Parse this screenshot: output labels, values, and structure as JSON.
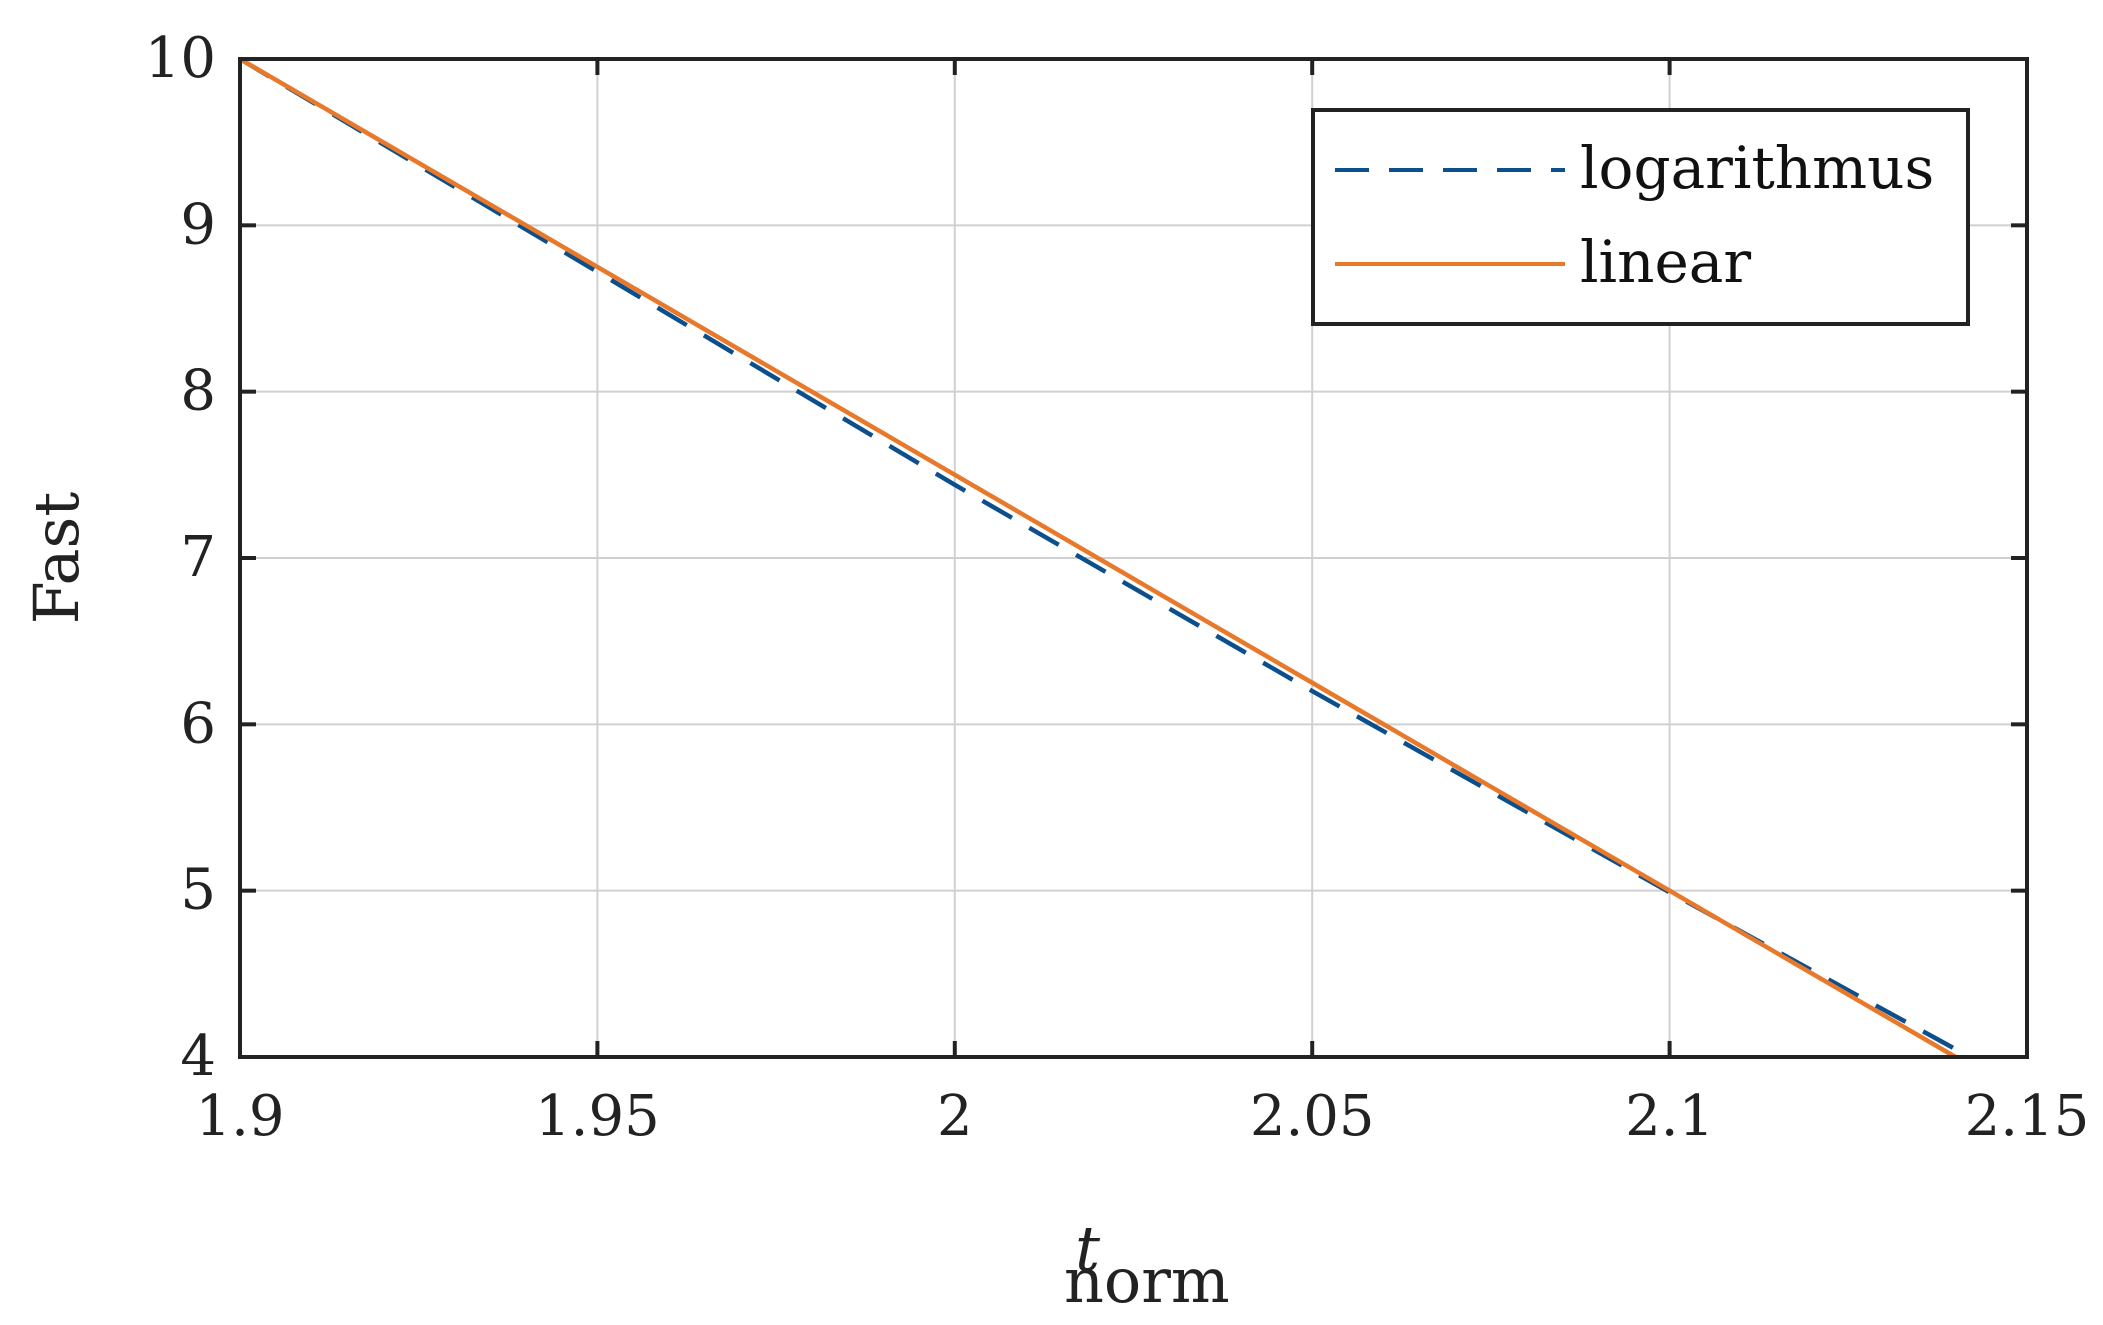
{
  "chart_data": {
    "type": "line",
    "title": "",
    "xlabel": "t",
    "xlabel_subscript": "norm",
    "ylabel": "Fast",
    "xlim": [
      1.9,
      2.15
    ],
    "ylim": [
      4,
      10
    ],
    "xticks": [
      1.9,
      1.95,
      2.0,
      2.05,
      2.1,
      2.15
    ],
    "xtick_labels": [
      "1.9",
      "1.95",
      "2",
      "2.05",
      "2.1",
      "2.15"
    ],
    "yticks": [
      4,
      5,
      6,
      7,
      8,
      9,
      10
    ],
    "ytick_labels": [
      "4",
      "5",
      "6",
      "7",
      "8",
      "9",
      "10"
    ],
    "grid": true,
    "legend_position": "top-right",
    "series": [
      {
        "name": "logarithmus",
        "style": "dashed",
        "color": "#0b4f8c",
        "x": [
          1.9,
          1.95,
          2.0,
          2.05,
          2.1,
          2.142
        ],
        "y": [
          10.0,
          8.72,
          7.44,
          6.2,
          4.99,
          4.0
        ]
      },
      {
        "name": "linear",
        "style": "solid",
        "color": "#e8792b",
        "x": [
          1.9,
          1.95,
          2.0,
          2.05,
          2.1,
          2.14
        ],
        "y": [
          10.0,
          8.75,
          7.5,
          6.25,
          5.0,
          4.0
        ]
      }
    ]
  }
}
